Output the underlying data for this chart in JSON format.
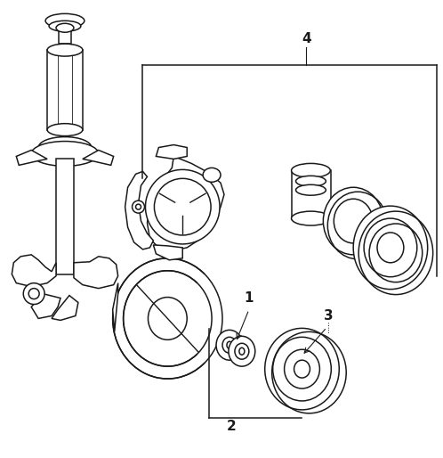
{
  "bg_color": "#ffffff",
  "line_color": "#1a1a1a",
  "fig_width": 4.98,
  "fig_height": 5.14,
  "dpi": 100
}
